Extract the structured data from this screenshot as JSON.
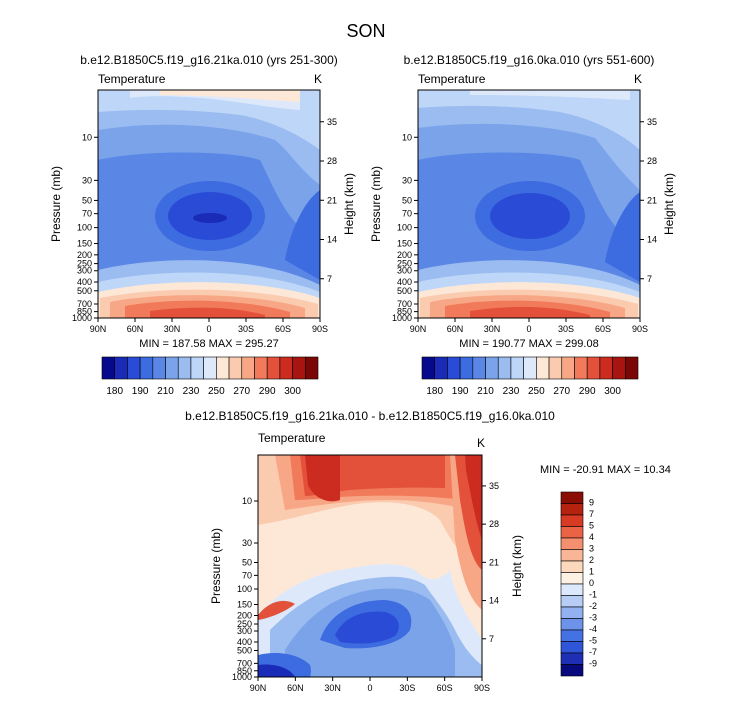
{
  "title": "SON",
  "colors": {
    "abs": [
      "#08088c",
      "#1a2bb8",
      "#2a4bd6",
      "#3d6be0",
      "#5a86e6",
      "#7aa3ea",
      "#9bbcf0",
      "#bed6f7",
      "#dde9fb",
      "#fde8d8",
      "#fbcbb0",
      "#f7a786",
      "#f07a5a",
      "#e3513a",
      "#cc2b1f",
      "#a8140f",
      "#7a0606"
    ],
    "diff": [
      "#09097e",
      "#1f2fb5",
      "#2f55d8",
      "#4471e4",
      "#6d92ea",
      "#93b0f0",
      "#b7cdf5",
      "#dce8fb",
      "#fdf1e3",
      "#fcd8bc",
      "#f9b696",
      "#f48f6f",
      "#ea6344",
      "#d83b23",
      "#b52310",
      "#8b0e04"
    ]
  },
  "chart_data": [
    {
      "type": "heatmap",
      "title": "b.e12.B1850C5.f19_g16.21ka.010 (yrs 251-300)",
      "left_label": "Temperature",
      "right_label": "K",
      "ylabel": "Pressure (mb)",
      "ylabel_right": "Height (km)",
      "x_ticks": [
        "90N",
        "60N",
        "30N",
        "0",
        "30S",
        "60S",
        "90S"
      ],
      "y_ticks": [
        "10",
        "30",
        "50",
        "70",
        "100",
        "150",
        "200",
        "250",
        "300",
        "400",
        "500",
        "700",
        "850",
        "1000"
      ],
      "height_ticks": [
        "35",
        "28",
        "21",
        "14",
        "7"
      ],
      "summary": "MIN = 187.58  MAX = 295.27",
      "colorbar_labels": [
        "180",
        "190",
        "210",
        "230",
        "250",
        "270",
        "290",
        "300"
      ],
      "min": 187.58,
      "max": 295.27
    },
    {
      "type": "heatmap",
      "title": "b.e12.B1850C5.f19_g16.0ka.010 (yrs 551-600)",
      "left_label": "Temperature",
      "right_label": "K",
      "ylabel": "Pressure (mb)",
      "ylabel_right": "Height (km)",
      "x_ticks": [
        "90N",
        "60N",
        "30N",
        "0",
        "30S",
        "60S",
        "90S"
      ],
      "y_ticks": [
        "10",
        "30",
        "50",
        "70",
        "100",
        "150",
        "200",
        "250",
        "300",
        "400",
        "500",
        "700",
        "850",
        "1000"
      ],
      "height_ticks": [
        "35",
        "28",
        "21",
        "14",
        "7"
      ],
      "summary": "MIN = 190.77  MAX = 299.08",
      "colorbar_labels": [
        "180",
        "190",
        "210",
        "230",
        "250",
        "270",
        "290",
        "300"
      ],
      "min": 190.77,
      "max": 299.08
    },
    {
      "type": "heatmap",
      "title": "b.e12.B1850C5.f19_g16.21ka.010 - b.e12.B1850C5.f19_g16.0ka.010",
      "left_label": "Temperature",
      "right_label": "K",
      "ylabel": "Pressure (mb)",
      "ylabel_right": "Height (km)",
      "x_ticks": [
        "90N",
        "60N",
        "30N",
        "0",
        "30S",
        "60S",
        "90S"
      ],
      "y_ticks": [
        "10",
        "30",
        "50",
        "70",
        "100",
        "150",
        "200",
        "250",
        "300",
        "400",
        "500",
        "700",
        "850",
        "1000"
      ],
      "height_ticks": [
        "35",
        "28",
        "21",
        "14",
        "7"
      ],
      "summary": "MIN = -20.91  MAX =  10.34",
      "colorbar_labels": [
        "9",
        "7",
        "5",
        "4",
        "3",
        "2",
        "1",
        "0",
        "-1",
        "-2",
        "-3",
        "-4",
        "-5",
        "-7",
        "-9"
      ],
      "min": -20.91,
      "max": 10.34
    }
  ]
}
